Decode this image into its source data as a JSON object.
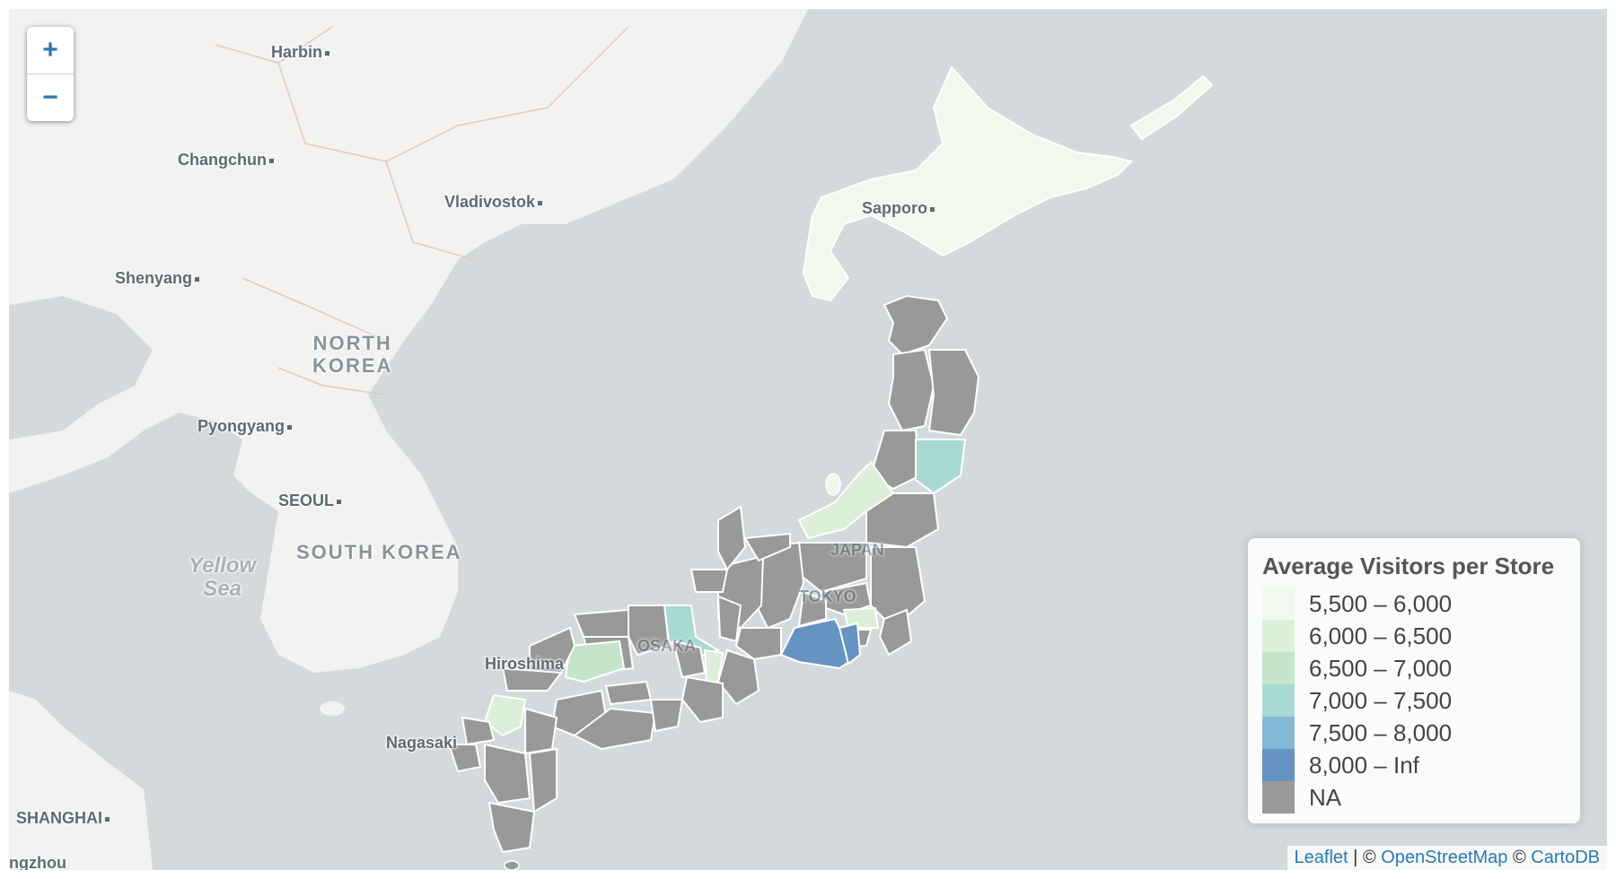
{
  "map": {
    "place_labels": {
      "harbin": "Harbin",
      "changchun": "Changchun",
      "vladivostok": "Vladivostok",
      "shenyang": "Shenyang",
      "north_korea": "NORTH\nKOREA",
      "pyongyang": "Pyongyang",
      "seoul": "SEOUL",
      "south_korea": "SOUTH KOREA",
      "yellow_sea": "Yellow\nSea",
      "sapporo": "Sapporo",
      "japan": "JAPAN",
      "tokyo": "TOKYO",
      "osaka": "OSAKA",
      "hiroshima": "Hiroshima",
      "nagasaki": "Nagasaki",
      "shanghai": "SHANGHAI",
      "hangzhou": "ngzhou"
    },
    "colors": {
      "sea": "#d4dadc",
      "land": "#f2f2f0",
      "na": "#999999",
      "border": "#ffffff"
    }
  },
  "zoom": {
    "in_label": "+",
    "out_label": "−"
  },
  "legend": {
    "title": "Average Visitors per Store",
    "items": [
      {
        "label": "5,500 – 6,000",
        "color": "#f1f8ee"
      },
      {
        "label": "6,000 – 6,500",
        "color": "#deefd9"
      },
      {
        "label": "6,500 – 7,000",
        "color": "#c6e4c9"
      },
      {
        "label": "7,000 – 7,500",
        "color": "#a8d9d3"
      },
      {
        "label": "7,500 – 8,000",
        "color": "#84b9d6"
      },
      {
        "label": "8,000 – Inf",
        "color": "#6593c2"
      },
      {
        "label": "NA",
        "color": "#9a9a9a"
      }
    ]
  },
  "attribution": {
    "leaflet": "Leaflet",
    "sep": "| ©",
    "osm": "OpenStreetMap",
    "copy": "©",
    "carto": "CartoDB"
  }
}
